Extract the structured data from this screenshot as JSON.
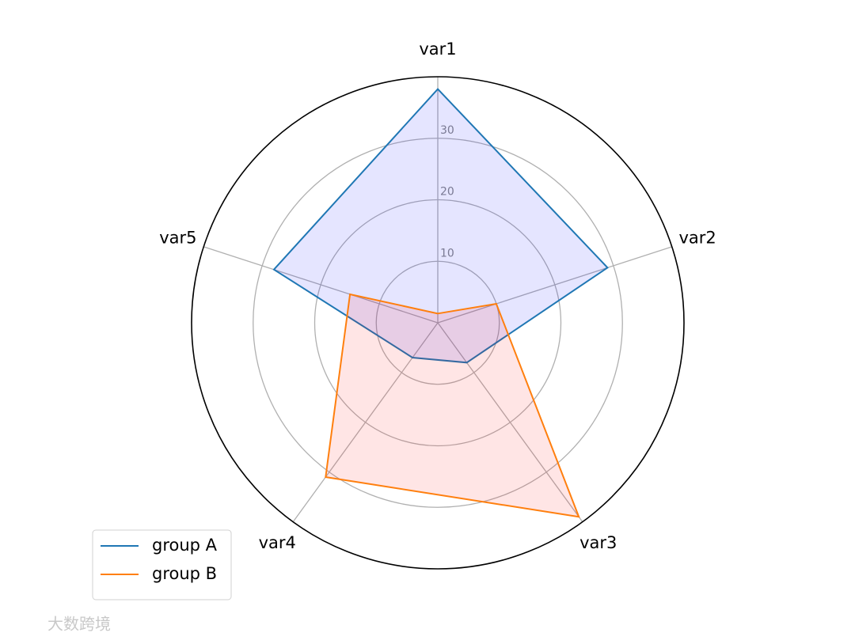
{
  "chart_data": {
    "type": "radar",
    "categories": [
      "var1",
      "var2",
      "var3",
      "var4",
      "var5"
    ],
    "series": [
      {
        "name": "group A",
        "color": "#1f77b4",
        "fill": "#0000ff",
        "values": [
          38,
          29,
          8,
          7,
          28
        ]
      },
      {
        "name": "group B",
        "color": "#ff7f0e",
        "fill": "#ff0000",
        "values": [
          1.5,
          10,
          39,
          31,
          15
        ]
      }
    ],
    "ylim": [
      0,
      40
    ],
    "yticks": [
      10,
      20,
      30
    ],
    "grid": true,
    "legend": "lower left",
    "watermark": "大数跨境"
  }
}
